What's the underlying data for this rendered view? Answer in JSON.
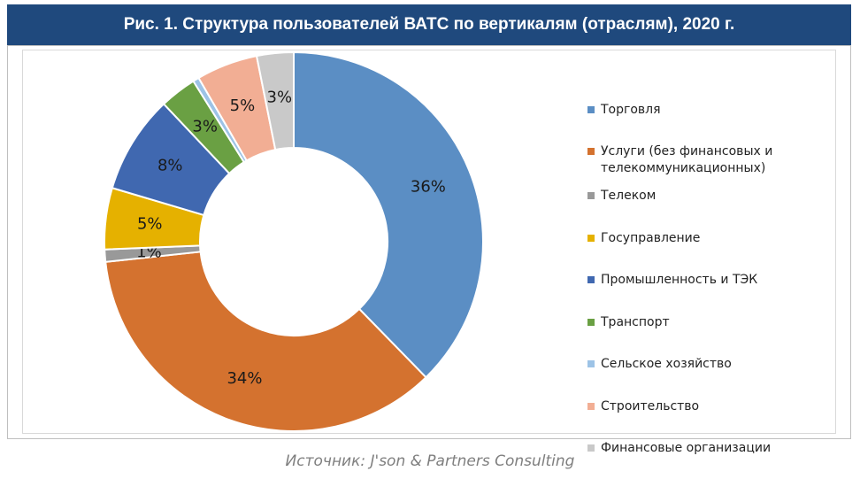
{
  "title": "Рис. 1. Структура пользователей ВАТС по вертикалям (отраслям), 2020 г.",
  "source": "Источник: J'son & Partners Consulting",
  "chart_data": {
    "type": "pie",
    "donut": true,
    "legend_position": "right",
    "series": [
      {
        "name": "Торговля",
        "value": 36,
        "label": "36%",
        "color": "#5b8ec4"
      },
      {
        "name": "Услуги (без финансовых и телекоммуникационных)",
        "value": 34,
        "label": "34%",
        "color": "#d4722f"
      },
      {
        "name": "Телеком",
        "value": 1,
        "label": "1%",
        "color": "#999999"
      },
      {
        "name": "Госуправление",
        "value": 5,
        "label": "5%",
        "color": "#e5b100"
      },
      {
        "name": "Промышленность и ТЭК",
        "value": 8,
        "label": "8%",
        "color": "#4068b0"
      },
      {
        "name": "Транспорт",
        "value": 3,
        "label": "3%",
        "color": "#6aa043"
      },
      {
        "name": "Сельское хозяйство",
        "value": 0.5,
        "label": "",
        "color": "#9dc3e6"
      },
      {
        "name": "Строительство",
        "value": 5,
        "label": "5%",
        "color": "#f2ae94"
      },
      {
        "name": "Финансовые организации",
        "value": 3,
        "label": "3%",
        "color": "#c9c9c9"
      }
    ]
  }
}
